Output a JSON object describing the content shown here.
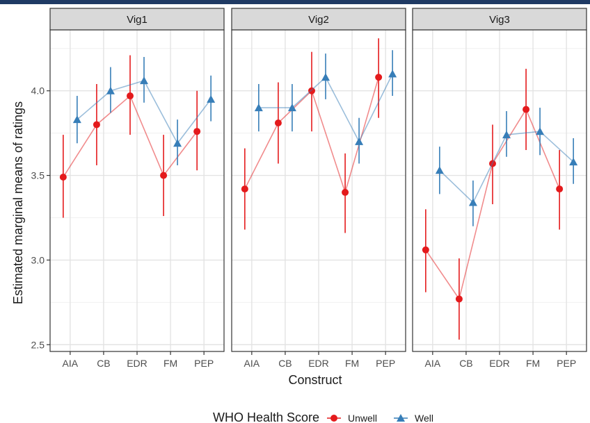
{
  "chart_data": {
    "type": "line",
    "facets": [
      "Vig1",
      "Vig2",
      "Vig3"
    ],
    "categories": [
      "AIA",
      "CB",
      "EDR",
      "FM",
      "PEP"
    ],
    "xlabel": "Construct",
    "ylabel": "Estimated marginal means of ratings",
    "ylim": [
      2.46,
      4.36
    ],
    "yticks": [
      2.5,
      3.0,
      3.5,
      4.0
    ],
    "ytick_labels": [
      "2.5",
      "3.0",
      "3.5",
      "4.0"
    ],
    "grid": true,
    "legend": {
      "title": "WHO Health Score",
      "position": "bottom"
    },
    "series": [
      {
        "name": "Unwell",
        "color": "#e41a1c",
        "marker": "circle",
        "values": {
          "Vig1": [
            3.49,
            3.8,
            3.97,
            3.5,
            3.76
          ],
          "Vig2": [
            3.42,
            3.81,
            4.0,
            3.4,
            4.08
          ],
          "Vig3": [
            3.06,
            2.77,
            3.57,
            3.89,
            3.42
          ]
        },
        "lower": {
          "Vig1": [
            3.25,
            3.56,
            3.74,
            3.26,
            3.53
          ],
          "Vig2": [
            3.18,
            3.57,
            3.76,
            3.16,
            3.84
          ],
          "Vig3": [
            2.81,
            2.53,
            3.33,
            3.65,
            3.18
          ]
        },
        "upper": {
          "Vig1": [
            3.74,
            4.04,
            4.21,
            3.74,
            4.0
          ],
          "Vig2": [
            3.66,
            4.05,
            4.23,
            3.63,
            4.31
          ],
          "Vig3": [
            3.3,
            3.01,
            3.8,
            4.13,
            3.65
          ]
        }
      },
      {
        "name": "Well",
        "color": "#377eb8",
        "marker": "triangle",
        "values": {
          "Vig1": [
            3.83,
            4.0,
            4.06,
            3.69,
            3.95
          ],
          "Vig2": [
            3.9,
            3.9,
            4.08,
            3.7,
            4.1
          ],
          "Vig3": [
            3.53,
            3.34,
            3.74,
            3.76,
            3.58
          ]
        },
        "lower": {
          "Vig1": [
            3.69,
            3.87,
            3.93,
            3.56,
            3.82
          ],
          "Vig2": [
            3.76,
            3.76,
            3.95,
            3.57,
            3.97
          ],
          "Vig3": [
            3.39,
            3.2,
            3.61,
            3.62,
            3.45
          ]
        },
        "upper": {
          "Vig1": [
            3.97,
            4.14,
            4.2,
            3.83,
            4.09
          ],
          "Vig2": [
            4.04,
            4.04,
            4.22,
            3.84,
            4.24
          ],
          "Vig3": [
            3.67,
            3.47,
            3.88,
            3.9,
            3.72
          ]
        }
      }
    ]
  }
}
